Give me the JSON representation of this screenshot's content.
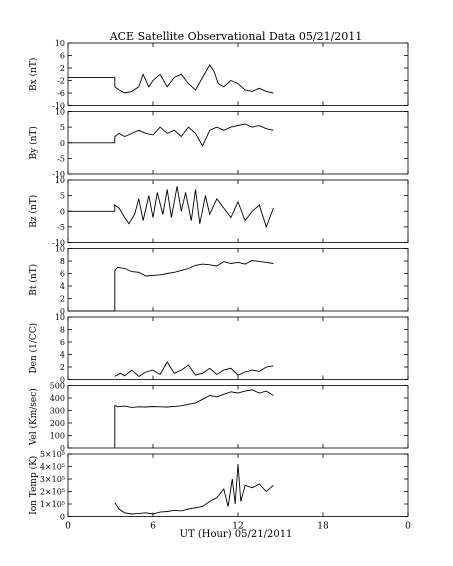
{
  "title": "ACE Satellite Observational Data   05/21/2011",
  "xlabel": "UT (Hour)   05/21/2011",
  "colors": {
    "line": "#000000",
    "background": "#ffffff"
  },
  "chart_data": [
    {
      "type": "line",
      "ylabel": "Bx (nT)",
      "ylim": [
        -10,
        10
      ],
      "yticks": [
        "10",
        "6",
        "2",
        "-2",
        "-6",
        "-10"
      ],
      "x": [
        0,
        3.3,
        3.3,
        3.6,
        4,
        4.5,
        5,
        5.3,
        5.7,
        6,
        6.5,
        7,
        7.5,
        8,
        8.5,
        9,
        9.5,
        10,
        10.3,
        10.6,
        11,
        11.5,
        12,
        12.5,
        13,
        13.5,
        14,
        14.5
      ],
      "values": [
        -1,
        -1,
        -4,
        -5,
        -6,
        -5.5,
        -4,
        0,
        -4,
        -2,
        0,
        -4,
        -1,
        0,
        -3,
        -5,
        -1,
        3,
        1,
        -3,
        -4,
        -2,
        -3,
        -5,
        -5.5,
        -4.5,
        -5.5,
        -6
      ]
    },
    {
      "type": "line",
      "ylabel": "By (nT)",
      "ylim": [
        -10,
        10
      ],
      "yticks": [
        "10",
        "5",
        "0",
        "-5",
        "-10"
      ],
      "x": [
        0,
        3.3,
        3.3,
        3.6,
        4,
        4.5,
        5,
        5.5,
        6,
        6.5,
        7,
        7.5,
        8,
        8.5,
        9,
        9.5,
        10,
        10.5,
        11,
        11.5,
        12,
        12.5,
        13,
        13.5,
        14,
        14.5
      ],
      "values": [
        0,
        0,
        2,
        3,
        2,
        3,
        4,
        3,
        2.5,
        5,
        3,
        4,
        2,
        5,
        3,
        -1,
        4,
        5,
        4,
        5,
        5.5,
        6,
        5,
        5.5,
        4.5,
        4
      ]
    },
    {
      "type": "line",
      "ylabel": "Bz (nT)",
      "ylim": [
        -10,
        10
      ],
      "yticks": [
        "10",
        "5",
        "0",
        "-5",
        "-10"
      ],
      "x": [
        0,
        3.3,
        3.3,
        3.6,
        4,
        4.3,
        4.7,
        5,
        5.3,
        5.7,
        6,
        6.3,
        6.7,
        7,
        7.3,
        7.7,
        8,
        8.3,
        8.7,
        9,
        9.3,
        9.7,
        10,
        10.5,
        11,
        11.5,
        12,
        12.5,
        13,
        13.5,
        14,
        14.5
      ],
      "values": [
        0,
        0,
        2,
        1,
        -2,
        -4,
        -1,
        4,
        -3,
        5,
        -2,
        6,
        -1,
        7,
        -2,
        8,
        0,
        6,
        -3,
        7,
        -4,
        5,
        -1,
        4,
        1,
        -2,
        3,
        -3,
        0,
        2,
        -5,
        1
      ]
    },
    {
      "type": "line",
      "ylabel": "Bt (nT)",
      "ylim": [
        0,
        10
      ],
      "yticks": [
        "10",
        "8",
        "6",
        "4",
        "2",
        "0"
      ],
      "x": [
        0,
        3.3,
        3.3,
        3.5,
        4,
        4.5,
        5,
        5.5,
        6,
        6.5,
        7,
        7.5,
        8,
        8.5,
        9,
        9.5,
        10,
        10.5,
        11,
        11.5,
        12,
        12.5,
        13,
        13.5,
        14,
        14.5
      ],
      "values": [
        0,
        0,
        6.5,
        7,
        6.8,
        6.3,
        6.2,
        5.6,
        5.7,
        5.8,
        6,
        6.2,
        6.5,
        6.8,
        7.3,
        7.5,
        7.4,
        7.2,
        7.9,
        7.6,
        7.8,
        7.5,
        8.1,
        7.9,
        7.8,
        7.6
      ]
    },
    {
      "type": "line",
      "ylabel": "Den (1/CC)",
      "ylim": [
        0,
        10
      ],
      "yticks": [
        "10",
        "8",
        "6",
        "4",
        "2",
        "0"
      ],
      "x": [
        3.3,
        3.7,
        4,
        4.5,
        5,
        5.5,
        6,
        6.5,
        7,
        7.5,
        8,
        8.5,
        9,
        9.5,
        10,
        10.5,
        11,
        11.5,
        12,
        12.5,
        13,
        13.5,
        14,
        14.5
      ],
      "values": [
        0.5,
        1,
        0.6,
        1.5,
        0.5,
        1.2,
        1.5,
        0.8,
        2.8,
        1,
        1.5,
        2.3,
        0.7,
        1,
        1.8,
        0.8,
        1.5,
        1.8,
        0.7,
        1.2,
        1.5,
        1.3,
        2,
        2.2
      ]
    },
    {
      "type": "line",
      "ylabel": "Vel (Km/sec)",
      "ylim": [
        0,
        500
      ],
      "yticks": [
        "500",
        "400",
        "300",
        "200",
        "100",
        "0"
      ],
      "x": [
        3.3,
        3.3,
        3.5,
        4,
        4.5,
        5,
        5.5,
        6,
        6.5,
        7,
        7.5,
        8,
        8.5,
        9,
        9.5,
        10,
        10.5,
        11,
        11.5,
        12,
        12.5,
        13,
        13.5,
        14,
        14.5
      ],
      "values": [
        0,
        340,
        330,
        335,
        325,
        330,
        328,
        332,
        330,
        328,
        333,
        338,
        350,
        360,
        390,
        420,
        410,
        430,
        450,
        440,
        455,
        465,
        440,
        455,
        420
      ]
    },
    {
      "type": "line",
      "ylabel": "Ion Temp (K)",
      "ylim": [
        0,
        500000
      ],
      "yticks": [
        "5×10⁵",
        "4×10⁵",
        "3×10⁵",
        "2×10⁵",
        "1×10⁵",
        "0"
      ],
      "x": [
        3.3,
        3.6,
        4,
        4.5,
        5,
        5.5,
        6,
        6.5,
        7,
        7.5,
        8,
        8.5,
        9,
        9.5,
        10,
        10.5,
        11,
        11.3,
        11.6,
        11.8,
        12,
        12.2,
        12.5,
        13,
        13.5,
        14,
        14.5
      ],
      "values": [
        110000,
        60000,
        30000,
        20000,
        25000,
        30000,
        20000,
        35000,
        40000,
        50000,
        45000,
        60000,
        70000,
        80000,
        120000,
        150000,
        220000,
        80000,
        300000,
        100000,
        420000,
        120000,
        250000,
        230000,
        260000,
        200000,
        250000
      ]
    }
  ],
  "xaxis": {
    "range": [
      0,
      24
    ],
    "ticks": [
      "0",
      "6",
      "12",
      "18",
      "0"
    ]
  }
}
